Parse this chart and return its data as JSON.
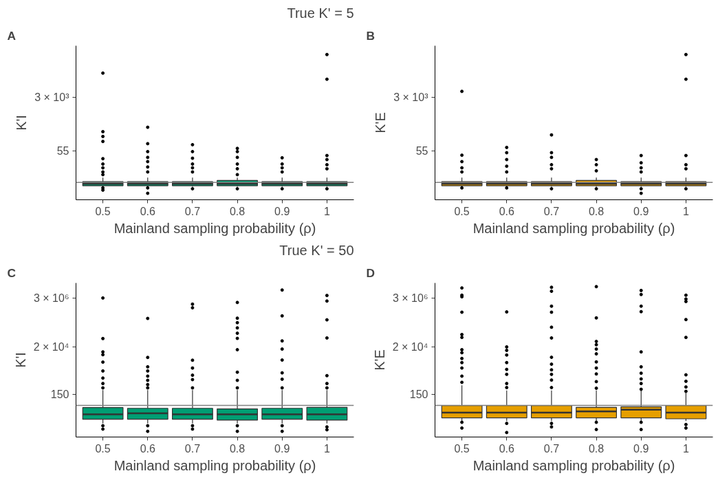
{
  "chart_data": [
    {
      "type": "box",
      "title": "True K' = 5",
      "annotations": [
        "A"
      ],
      "xlabel": "Mainland sampling probability (ρ)",
      "ylabel": "K'I",
      "categories": [
        "0.5",
        "0.6",
        "0.7",
        "0.8",
        "0.9",
        "1"
      ],
      "log": true,
      "ylim": [
        1.35,
        150000
      ],
      "yticks": [
        55,
        {
          "value": 3000,
          "label": "3 × 10³"
        }
      ],
      "ref_lines": [
        {
          "axis": "y",
          "value": 5,
          "color": "#808080"
        }
      ],
      "series": [
        {
          "color": "#009e73",
          "boxes": [
            {
              "low": 3.6,
              "q1": 3.9,
              "median": 4.5,
              "q3": 5.3,
              "high": 7.2,
              "outliers": [
                19000,
                230,
                160,
                110,
                30,
                20,
                15,
                11,
                9,
                3.3,
                2.8
              ]
            },
            {
              "low": 3.6,
              "q1": 3.9,
              "median": 4.5,
              "q3": 5.3,
              "high": 7.2,
              "outliers": [
                320,
                93,
                51,
                33,
                24,
                16,
                11,
                3.3,
                2.2
              ]
            },
            {
              "low": 3.6,
              "q1": 3.9,
              "median": 4.5,
              "q3": 5.3,
              "high": 7.2,
              "outliers": [
                86,
                51,
                31,
                20,
                15,
                11,
                3.1
              ]
            },
            {
              "low": 3.6,
              "q1": 3.9,
              "median": 4.5,
              "q3": 5.8,
              "high": 7.2,
              "outliers": [
                65,
                51,
                33,
                20,
                14,
                9,
                3.1
              ]
            },
            {
              "low": 3.6,
              "q1": 3.9,
              "median": 4.5,
              "q3": 5.3,
              "high": 7.2,
              "outliers": [
                32,
                20,
                15,
                11,
                3.1
              ]
            },
            {
              "low": 3.6,
              "q1": 3.9,
              "median": 4.5,
              "q3": 5.3,
              "high": 7.2,
              "outliers": [
                77000,
                12000,
                38,
                28,
                19,
                14,
                3.1
              ]
            }
          ]
        }
      ]
    },
    {
      "type": "box",
      "annotations": [
        "B"
      ],
      "xlabel": "Mainland sampling probability (ρ)",
      "ylabel": "K'E",
      "categories": [
        "0.5",
        "0.6",
        "0.7",
        "0.8",
        "0.9",
        "1"
      ],
      "log": true,
      "ylim": [
        1.35,
        150000
      ],
      "yticks": [
        55,
        {
          "value": 3000,
          "label": "3 × 10³"
        }
      ],
      "ref_lines": [
        {
          "axis": "y",
          "value": 5,
          "color": "#808080"
        }
      ],
      "series": [
        {
          "color": "#e69f00",
          "boxes": [
            {
              "low": 3.6,
              "q1": 3.9,
              "median": 4.5,
              "q3": 5.3,
              "high": 7.2,
              "outliers": [
                4800,
                39,
                24,
                15,
                11,
                3.3
              ]
            },
            {
              "low": 3.6,
              "q1": 3.9,
              "median": 4.5,
              "q3": 5.3,
              "high": 7.2,
              "outliers": [
                70,
                47,
                28,
                17,
                11,
                3.3
              ]
            },
            {
              "low": 3.6,
              "q1": 3.9,
              "median": 4.5,
              "q3": 5.3,
              "high": 7.2,
              "outliers": [
                180,
                47,
                33,
                19,
                14,
                3.1
              ]
            },
            {
              "low": 3.6,
              "q1": 3.9,
              "median": 4.5,
              "q3": 5.8,
              "high": 7.2,
              "outliers": [
                28,
                19,
                12,
                3.1
              ]
            },
            {
              "low": 3.6,
              "q1": 3.9,
              "median": 4.5,
              "q3": 5.3,
              "high": 7.2,
              "outliers": [
                38,
                22,
                15,
                11,
                3.1,
                2.2
              ]
            },
            {
              "low": 3.6,
              "q1": 3.9,
              "median": 4.5,
              "q3": 5.3,
              "high": 7.2,
              "outliers": [
                77000,
                12000,
                38,
                19,
                14,
                3.1
              ]
            }
          ]
        }
      ]
    },
    {
      "type": "box",
      "title": "True K' = 50",
      "annotations": [
        "C"
      ],
      "xlabel": "Mainland sampling probability (ρ)",
      "ylabel": "K'I",
      "categories": [
        "0.5",
        "0.6",
        "0.7",
        "0.8",
        "0.9",
        "1"
      ],
      "log": true,
      "ylim": [
        1.95,
        14000000
      ],
      "yticks": [
        150,
        {
          "value": 20000,
          "label": "2 × 10⁴"
        },
        {
          "value": 3000000,
          "label": "3 × 10⁶"
        }
      ],
      "ref_lines": [
        {
          "axis": "y",
          "value": 50,
          "color": "#808080"
        }
      ],
      "series": [
        {
          "color": "#009e73",
          "boxes": [
            {
              "low": 7.8,
              "q1": 12,
              "median": 20,
              "q3": 40,
              "high": 240,
              "outliers": [
                3000000,
                47000,
                12000,
                9000,
                4200,
                1700,
                820,
                470,
                300,
                6.2,
                4.4
              ]
            },
            {
              "low": 7.8,
              "q1": 12,
              "median": 22,
              "q3": 37,
              "high": 240,
              "outliers": [
                370000,
                6800,
                2600,
                1700,
                1000,
                650,
                420,
                300,
                6.2,
                3.5
              ]
            },
            {
              "low": 7.8,
              "q1": 12,
              "median": 20,
              "q3": 37,
              "high": 240,
              "outliers": [
                1600000,
                1100000,
                5100,
                2300,
                1100,
                700,
                300,
                6.2,
                4.4
              ]
            },
            {
              "low": 7.8,
              "q1": 11,
              "median": 20,
              "q3": 35,
              "high": 240,
              "outliers": [
                1900000,
                380000,
                240000,
                140000,
                81000,
                48000,
                15000,
                1500,
                650,
                300,
                6.2,
                3.5
              ]
            },
            {
              "low": 7.8,
              "q1": 12,
              "median": 20,
              "q3": 37,
              "high": 240,
              "outliers": [
                6800000,
                480000,
                37000,
                16000,
                5200,
                1400,
                730,
                300,
                6.2,
                3.5
              ]
            },
            {
              "low": 7.8,
              "q1": 11,
              "median": 20,
              "q3": 41,
              "high": 240,
              "outliers": [
                3900000,
                2200000,
                320000,
                50000,
                1050,
                470,
                300,
                5.5,
                4.1
              ]
            }
          ]
        }
      ]
    },
    {
      "type": "box",
      "annotations": [
        "D"
      ],
      "xlabel": "Mainland sampling probability (ρ)",
      "ylabel": "K'E",
      "categories": [
        "0.5",
        "0.6",
        "0.7",
        "0.8",
        "0.9",
        "1"
      ],
      "log": true,
      "ylim": [
        1.95,
        14000000
      ],
      "yticks": [
        150,
        {
          "value": 20000,
          "label": "2 × 10⁴"
        },
        {
          "value": 3000000,
          "label": "3 × 10⁶"
        }
      ],
      "ref_lines": [
        {
          "axis": "y",
          "value": 50,
          "color": "#808080"
        }
      ],
      "series": [
        {
          "color": "#e69f00",
          "boxes": [
            {
              "low": 10,
              "q1": 14,
              "median": 24,
              "q3": 49,
              "high": 390,
              "outliers": [
                8400000,
                4000000,
                3400000,
                700000,
                71000,
                53000,
                15000,
                11000,
                6100,
                4000,
                2300,
                1000,
                530,
                8.8,
                4.9
              ]
            },
            {
              "low": 10,
              "q1": 14,
              "median": 24,
              "q3": 49,
              "high": 230,
              "outliers": [
                720000,
                20000,
                14000,
                8700,
                4000,
                2000,
                1200,
                470,
                310,
                7.9,
                3.1
              ]
            },
            {
              "low": 10,
              "q1": 14,
              "median": 24,
              "q3": 49,
              "high": 230,
              "outliers": [
                9000000,
                6000000,
                1300000,
                700000,
                150000,
                50000,
                6900,
                3400,
                1900,
                1200,
                670,
                310,
                7.9,
                5.5
              ]
            },
            {
              "low": 10,
              "q1": 14,
              "median": 27,
              "q3": 41,
              "high": 230,
              "outliers": [
                9600000,
                390000,
                35000,
                25000,
                16000,
                9800,
                4300,
                2300,
                1250,
                570,
                290,
                8.8,
                4.2
              ]
            },
            {
              "low": 10,
              "q1": 14,
              "median": 32,
              "q3": 43,
              "high": 230,
              "outliers": [
                6500000,
                4300000,
                1300000,
                740000,
                12000,
                2600,
                1350,
                750,
                470,
                260,
                8.8,
                4.2
              ]
            },
            {
              "low": 10,
              "q1": 12.6,
              "median": 24,
              "q3": 49,
              "high": 180,
              "outliers": [
                4000000,
                2700000,
                2100000,
                330000,
                53000,
                1140,
                590,
                330,
                210,
                7.0,
                4.9
              ]
            }
          ]
        }
      ]
    }
  ]
}
